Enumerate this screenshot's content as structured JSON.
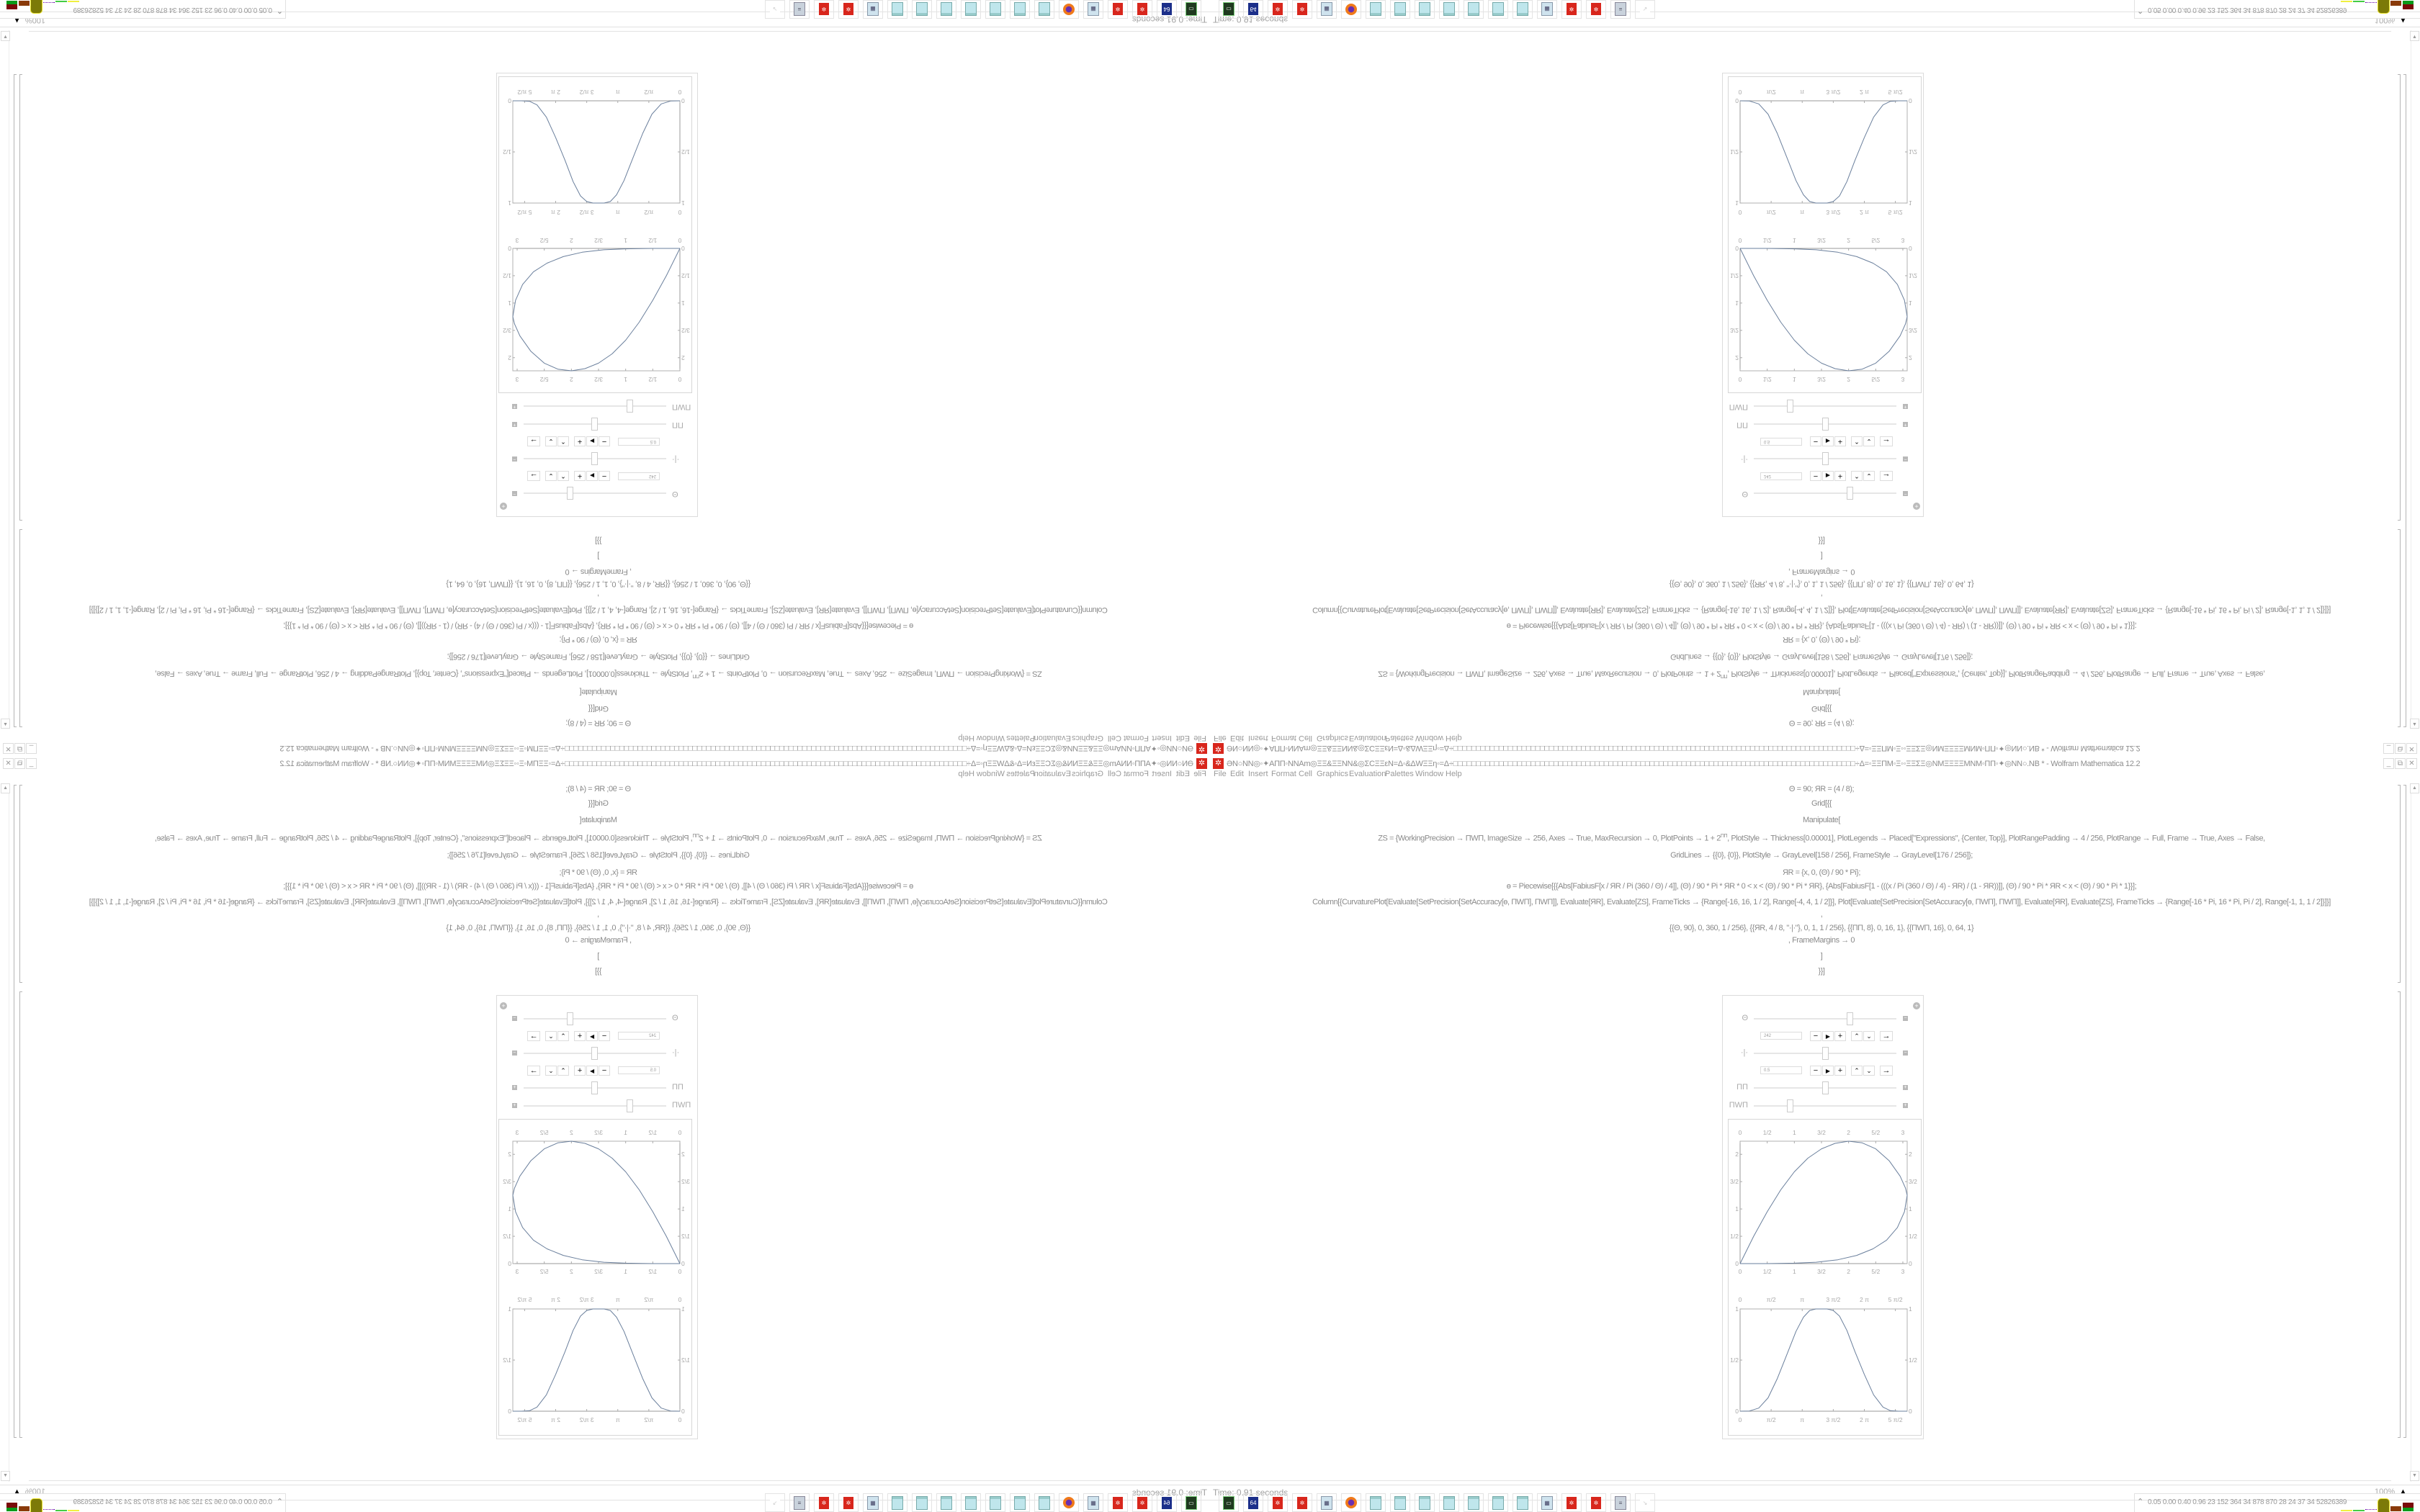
{
  "window": {
    "title": "ƏN○NN◎◦✦ΑΠΠ◦NNAm◎ΞΞ&ΞΞNN&◎ΣCΞΞεN=Δ◦&ΔWΞΞη◦=Δ÷□□□□□□□□□□□□□□□□□□□□□□□□□□□□□□□□□□□□□□□□□□□□□□□□□□□□□□□□□□□□□□□□□□□□□□□□□□□□□□□□□□□□□□□□÷Δ=◦ΞΞΠM◦Ξ◦◦ΞΞΣΞ◎NMΞΞΞΞMNM◦ΠΠ◦✦◎NN○.NB * - Wolfram Mathematica 12.2",
    "app_icon": "mathematica-icon",
    "controls": {
      "minimize": "_",
      "restore": "⧉",
      "close": "✕"
    }
  },
  "menu": [
    "File",
    "Edit",
    "Insert",
    "Format",
    "Cell",
    "Graphics",
    "Evaluation",
    "Palettes",
    "Window",
    "Help"
  ],
  "code": {
    "l1": "Θ = 90; ЯR = (4 / 8);",
    "l2": "Grid[{{",
    "l3": "Manipulate[",
    "l4a": "ΖS = {WorkingPrecision → ΠWΠ, ImageSize → 256, Axes → True, MaxRecursion → 0, PlotPoints → 1 + 2",
    "l4sup": "ΠΠ",
    "l4b": ", PlotStyle → Thickness[0.00001], PlotLegends → Placed[\"Expressions\", {Center, Top}], PlotRangePadding → 4 / 256, PlotRange → Full, Frame → True, Axes → False,",
    "l5": "GridLines → {{0}, {0}}, PlotStyle → GrayLevel[158 / 256], FrameStyle → GrayLevel[176 / 256]};",
    "l6": "ЯR = {x, 0, (Θ) / 90 * Pi};",
    "l7": "ɵ = Piecewise[{{Abs[FabiusF[x / ЯR / Pi (360 / Θ) / 4]], (Θ) / 90 * Pi * ЯR * 0 < x < (Θ) / 90 * Pi * ЯR}, {Abs[FabiusF[1 - (((x / Pi (360 / Θ) / 4) - ЯR) / (1 - ЯR))]], (Θ) / 90 * Pi * ЯR < x < (Θ) / 90 * Pi * 1}}];",
    "l8": "Column[{CurvaturePlot[Evaluate[SetPrecision[SetAccuracy[ɵ, ΠWΠ], ΠWΠ]], Evaluate[ЯR], Evaluate[ΖS], FrameTicks → {Range[-16, 16, 1 / 2], Range[-4, 4, 1 / 2]}], Plot[Evaluate[SetPrecision[SetAccuracy[ɵ, ΠWΠ], ΠWΠ]], Evaluate[ЯR], Evaluate[ΖS], FrameTicks → {Range[-16 * Pi, 16 * Pi, Pi / 2], Range[-1, 1, 1 / 2]}]}]",
    "l9": ",",
    "l10": "{{Θ, 90}, 0, 360, 1 / 256}, {{ЯR, 4 / 8, \"·|·\"}, 0, 1, 1 / 256}, {{ΠΠ, 8}, 0, 16, 1}, {{ΠWΠ, 16}, 0, 64, 1}",
    "l11": ", FrameMargins → 0",
    "l12": "]",
    "l13": "}}]"
  },
  "manipulate": {
    "controls": [
      {
        "label": "Θ",
        "value": "242",
        "fraction": 0.672,
        "expanded": true
      },
      {
        "label": "·|·",
        "value": "0.5",
        "fraction": 0.5,
        "expanded": true
      },
      {
        "label": "ΠΠ",
        "fraction": 0.5,
        "expanded": false
      },
      {
        "label": "ΠWΠ",
        "fraction": 0.25,
        "expanded": false
      }
    ],
    "buttons": {
      "minus": "−",
      "play": "▶",
      "plus": "+",
      "faster": "≈",
      "slower": "≈",
      "direction": "→"
    },
    "collapse": "−",
    "expand": "+",
    "add_icon": "⊕"
  },
  "plots": [
    {
      "type": "curvature",
      "xrange": [
        0,
        3.08
      ],
      "yrange": [
        0,
        2.24
      ],
      "xticks": [
        {
          "v": 0,
          "t": "0"
        },
        {
          "v": 0.5,
          "t": "1/2"
        },
        {
          "v": 1,
          "t": "1"
        },
        {
          "v": 1.5,
          "t": "3/2"
        },
        {
          "v": 2,
          "t": "2"
        },
        {
          "v": 2.5,
          "t": "5/2"
        },
        {
          "v": 3,
          "t": "3"
        }
      ],
      "yticks": [
        {
          "v": 0,
          "t": "0"
        },
        {
          "v": 0.5,
          "t": "1/2"
        },
        {
          "v": 1,
          "t": "1"
        },
        {
          "v": 1.5,
          "t": "3/2"
        },
        {
          "v": 2,
          "t": "2"
        }
      ],
      "points": [
        [
          0,
          0
        ],
        [
          0.25,
          0.5
        ],
        [
          0.5,
          0.95
        ],
        [
          0.75,
          1.35
        ],
        [
          1,
          1.68
        ],
        [
          1.25,
          1.93
        ],
        [
          1.5,
          2.1
        ],
        [
          1.75,
          2.2
        ],
        [
          2,
          2.24
        ],
        [
          2.25,
          2.21
        ],
        [
          2.5,
          2.1
        ],
        [
          2.75,
          1.88
        ],
        [
          2.95,
          1.6
        ],
        [
          3.05,
          1.38
        ],
        [
          3.08,
          1.25
        ],
        [
          3.03,
          0.95
        ],
        [
          2.9,
          0.66
        ],
        [
          2.7,
          0.43
        ],
        [
          2.45,
          0.27
        ],
        [
          2.15,
          0.15
        ],
        [
          1.8,
          0.07
        ],
        [
          1.4,
          0.025
        ],
        [
          1,
          0.008
        ],
        [
          0.5,
          0
        ],
        [
          0,
          0
        ]
      ]
    },
    {
      "type": "line",
      "xrange": [
        0,
        2.69
      ],
      "x_unit": "π",
      "yrange": [
        0,
        1
      ],
      "xticks": [
        {
          "v": 0,
          "t": "0"
        },
        {
          "v": 0.5,
          "t": "π/2"
        },
        {
          "v": 1,
          "t": "π"
        },
        {
          "v": 1.5,
          "t": "3 π/2"
        },
        {
          "v": 2,
          "t": "2 π"
        },
        {
          "v": 2.5,
          "t": "5 π/2"
        }
      ],
      "yticks": [
        {
          "v": 0,
          "t": "0"
        },
        {
          "v": 0.5,
          "t": "1/2"
        },
        {
          "v": 1,
          "t": "1"
        }
      ],
      "points": [
        [
          0,
          0
        ],
        [
          0.15,
          0.002
        ],
        [
          0.3,
          0.03
        ],
        [
          0.45,
          0.13
        ],
        [
          0.6,
          0.32
        ],
        [
          0.75,
          0.55
        ],
        [
          0.9,
          0.78
        ],
        [
          1.02,
          0.92
        ],
        [
          1.12,
          0.985
        ],
        [
          1.22,
          1
        ],
        [
          1.4,
          1
        ],
        [
          1.5,
          0.985
        ],
        [
          1.6,
          0.93
        ],
        [
          1.72,
          0.79
        ],
        [
          1.85,
          0.58
        ],
        [
          2.0,
          0.36
        ],
        [
          2.15,
          0.16
        ],
        [
          2.3,
          0.04
        ],
        [
          2.42,
          0.005
        ],
        [
          2.55,
          0
        ],
        [
          2.69,
          0
        ]
      ]
    }
  ],
  "status": {
    "time": "Time: 0.91 seconds",
    "zoom": "100%",
    "zoom_icon": "▲"
  },
  "taskbar": {
    "icons": [
      {
        "name": "terminal",
        "label": "▭"
      },
      {
        "name": "floppy",
        "label": "64"
      },
      {
        "name": "mathematica",
        "label": "✲"
      },
      {
        "name": "mathematica",
        "label": "✲"
      },
      {
        "name": "calculator",
        "label": "▦"
      },
      {
        "name": "firefox",
        "label": "●"
      },
      {
        "name": "notepad",
        "label": ""
      },
      {
        "name": "notepad",
        "label": ""
      },
      {
        "name": "notepad",
        "label": ""
      },
      {
        "name": "notepad",
        "label": ""
      },
      {
        "name": "notepad",
        "label": ""
      },
      {
        "name": "notepad",
        "label": ""
      },
      {
        "name": "notepad",
        "label": ""
      },
      {
        "name": "calculator",
        "label": "▦"
      },
      {
        "name": "mathematica",
        "label": "✲"
      },
      {
        "name": "mathematica",
        "label": "✲"
      },
      {
        "name": "script",
        "label": "≡"
      },
      {
        "name": "arrow",
        "label": "↘"
      }
    ],
    "tray_chevron": "⌃",
    "tray_text": "0.05 0.00 0.40 0.96 23 152 364 34 878 870 28 24 37 34 52826389"
  },
  "colors": {
    "curve": "#6a7f9c",
    "frame": "#b0b0b0",
    "text": "#8a8a8a",
    "mathematica": "#d8261c",
    "notepad": "#a8d8e0",
    "terminal": "#1f3a1f",
    "floppy": "#1c2f8a",
    "firefox": "#f07a1a"
  }
}
